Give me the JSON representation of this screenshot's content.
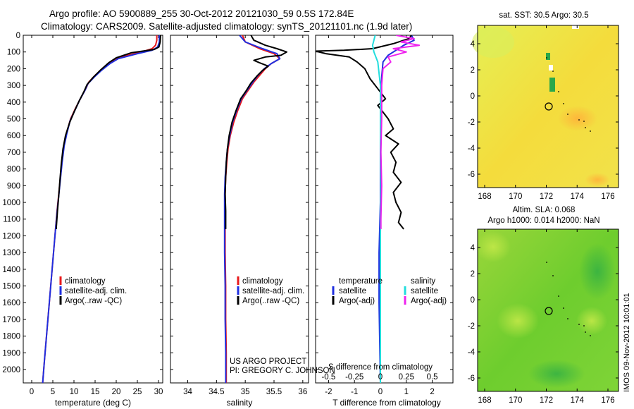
{
  "header": {
    "line1": "Argo profile: AO 5900889_255 30-Oct-2012 20121030_59 0.5S 172.84E",
    "line2": "Climatology: CARS2009. Satellite-adjusted climatology: synTS_20121101.nc (1.9d later)"
  },
  "side_stamp": "IMOS 09-Nov-2012 10:01:01",
  "colors": {
    "climatology": "#e8191b",
    "satellite": "#1f2fe0",
    "argo": "#000000",
    "argo_adj_s": "#ee22ee",
    "sat_s": "#22dddd"
  },
  "chart_data": [
    {
      "id": "temperature",
      "type": "line",
      "xlabel": "temperature (deg C)",
      "ylabel": "",
      "xlim": [
        -2,
        31
      ],
      "ylim": [
        2080,
        0
      ],
      "xticks": [
        0,
        5,
        10,
        15,
        20,
        25,
        30
      ],
      "yticks": [
        0,
        100,
        200,
        300,
        400,
        500,
        600,
        700,
        800,
        900,
        1000,
        1100,
        1200,
        1300,
        1400,
        1500,
        1600,
        1700,
        1800,
        1900,
        2000
      ],
      "legend": [
        "climatology",
        "satellite-adj. clim.",
        "Argo(..raw -QC)"
      ],
      "series": [
        {
          "name": "climatology",
          "color": "#e8191b",
          "points": [
            [
              29.6,
              0
            ],
            [
              29.6,
              30
            ],
            [
              29.3,
              60
            ],
            [
              28.5,
              80
            ],
            [
              26,
              100
            ],
            [
              21,
              130
            ],
            [
              19,
              160
            ],
            [
              16.8,
              200
            ],
            [
              15,
              240
            ],
            [
              13.5,
              280
            ],
            [
              12.8,
              320
            ],
            [
              11.5,
              380
            ],
            [
              10.3,
              440
            ],
            [
              9.2,
              500
            ],
            [
              8.3,
              580
            ],
            [
              7.7,
              650
            ],
            [
              7.2,
              750
            ],
            [
              6.8,
              850
            ],
            [
              6.4,
              950
            ],
            [
              6,
              1050
            ],
            [
              5.5,
              1200
            ],
            [
              5,
              1350
            ],
            [
              4.5,
              1500
            ],
            [
              4,
              1650
            ],
            [
              3.5,
              1800
            ],
            [
              3,
              1950
            ],
            [
              2.6,
              2080
            ]
          ]
        },
        {
          "name": "satellite-adj. clim.",
          "color": "#1f2fe0",
          "points": [
            [
              30.2,
              0
            ],
            [
              30.2,
              40
            ],
            [
              29.8,
              70
            ],
            [
              28.5,
              90
            ],
            [
              25,
              110
            ],
            [
              20.5,
              140
            ],
            [
              18.5,
              170
            ],
            [
              16.5,
              210
            ],
            [
              14.8,
              250
            ],
            [
              13.3,
              290
            ],
            [
              12.6,
              330
            ],
            [
              11.3,
              390
            ],
            [
              10.2,
              450
            ],
            [
              9.1,
              510
            ],
            [
              8.3,
              590
            ],
            [
              7.7,
              660
            ],
            [
              7.2,
              760
            ],
            [
              6.8,
              860
            ],
            [
              6.4,
              960
            ],
            [
              6,
              1060
            ],
            [
              5.5,
              1200
            ],
            [
              5,
              1350
            ],
            [
              4.5,
              1500
            ],
            [
              4,
              1650
            ],
            [
              3.5,
              1800
            ],
            [
              3,
              1950
            ],
            [
              2.6,
              2080
            ]
          ]
        },
        {
          "name": "Argo(..raw -QC)",
          "color": "#000000",
          "points": [
            [
              30.5,
              0
            ],
            [
              30.4,
              40
            ],
            [
              30.1,
              70
            ],
            [
              29,
              85
            ],
            [
              23.5,
              105
            ],
            [
              20,
              135
            ],
            [
              18.2,
              165
            ],
            [
              16.2,
              210
            ],
            [
              14.6,
              250
            ],
            [
              13.1,
              295
            ],
            [
              12.4,
              335
            ],
            [
              11.2,
              395
            ],
            [
              10.1,
              455
            ],
            [
              9.0,
              520
            ],
            [
              8.0,
              600
            ],
            [
              7.4,
              680
            ],
            [
              7.0,
              770
            ],
            [
              6.7,
              860
            ],
            [
              6.4,
              960
            ],
            [
              6.1,
              1050
            ],
            [
              5.8,
              1160
            ]
          ]
        }
      ]
    },
    {
      "id": "salinity",
      "type": "line",
      "xlabel": "salinity",
      "ylabel": "",
      "xlim": [
        33.7,
        36.1
      ],
      "ylim": [
        2080,
        0
      ],
      "xticks": [
        34,
        34.5,
        35,
        35.5,
        36
      ],
      "legend": [
        "climatology",
        "satellite-adj. clim.",
        "Argo(..raw -QC)"
      ],
      "annotation": [
        "US ARGO PROJECT",
        "PI: GREGORY C. JOHNSON"
      ],
      "series": [
        {
          "name": "climatology",
          "color": "#e8191b",
          "points": [
            [
              34.95,
              0
            ],
            [
              35.0,
              40
            ],
            [
              35.25,
              80
            ],
            [
              35.5,
              110
            ],
            [
              35.6,
              140
            ],
            [
              35.45,
              170
            ],
            [
              35.35,
              200
            ],
            [
              35.25,
              240
            ],
            [
              35.15,
              280
            ],
            [
              35.05,
              330
            ],
            [
              34.95,
              380
            ],
            [
              34.87,
              450
            ],
            [
              34.8,
              520
            ],
            [
              34.74,
              600
            ],
            [
              34.7,
              680
            ],
            [
              34.68,
              760
            ],
            [
              34.66,
              850
            ],
            [
              34.65,
              950
            ],
            [
              34.65,
              1100
            ],
            [
              34.65,
              1300
            ],
            [
              34.66,
              1500
            ],
            [
              34.66,
              1700
            ],
            [
              34.67,
              1900
            ],
            [
              34.67,
              2080
            ]
          ]
        },
        {
          "name": "satellite-adj. clim.",
          "color": "#1f2fe0",
          "points": [
            [
              34.9,
              0
            ],
            [
              35.0,
              40
            ],
            [
              35.3,
              80
            ],
            [
              35.55,
              110
            ],
            [
              35.6,
              140
            ],
            [
              35.45,
              170
            ],
            [
              35.33,
              200
            ],
            [
              35.22,
              240
            ],
            [
              35.13,
              280
            ],
            [
              35.03,
              330
            ],
            [
              34.93,
              380
            ],
            [
              34.85,
              450
            ],
            [
              34.78,
              520
            ],
            [
              34.73,
              600
            ],
            [
              34.69,
              680
            ],
            [
              34.67,
              760
            ],
            [
              34.65,
              850
            ],
            [
              34.64,
              950
            ],
            [
              34.64,
              1100
            ],
            [
              34.64,
              1300
            ],
            [
              34.65,
              1500
            ],
            [
              34.65,
              1700
            ],
            [
              34.66,
              1900
            ],
            [
              34.66,
              2080
            ]
          ]
        },
        {
          "name": "Argo(..raw -QC)",
          "color": "#000000",
          "points": [
            [
              35.1,
              0
            ],
            [
              35.15,
              30
            ],
            [
              35.35,
              60
            ],
            [
              35.55,
              80
            ],
            [
              35.72,
              100
            ],
            [
              35.62,
              120
            ],
            [
              35.35,
              130
            ],
            [
              35.15,
              150
            ],
            [
              35.25,
              165
            ],
            [
              35.4,
              185
            ],
            [
              35.3,
              210
            ],
            [
              35.2,
              245
            ],
            [
              35.1,
              285
            ],
            [
              35.02,
              330
            ],
            [
              34.92,
              380
            ],
            [
              34.84,
              450
            ],
            [
              34.77,
              520
            ],
            [
              34.72,
              600
            ],
            [
              34.69,
              680
            ],
            [
              34.67,
              760
            ],
            [
              34.66,
              850
            ],
            [
              34.65,
              950
            ],
            [
              34.66,
              1050
            ],
            [
              34.66,
              1160
            ]
          ]
        }
      ]
    },
    {
      "id": "difference",
      "type": "line",
      "xlabel": "T difference from climatology",
      "xlabel_top": "S difference from climatology",
      "xlim": [
        -2.5,
        2.8
      ],
      "ylim": [
        2080,
        0
      ],
      "xticks": [
        -2,
        -1,
        0,
        1,
        2
      ],
      "xticks_s": [
        "-0.5",
        "-0.25",
        "0",
        "0.25",
        "0.5"
      ],
      "legend_left_title": "temperature",
      "legend_right_title": "salinity",
      "legend_left": [
        "satellite",
        "Argo(-adj)"
      ],
      "legend_right": [
        "satellite",
        "Argo(-adj)"
      ],
      "series": [
        {
          "name": "T satellite",
          "color": "#1f2fe0",
          "points": [
            [
              1.2,
              0
            ],
            [
              1.3,
              30
            ],
            [
              0.9,
              60
            ],
            [
              0.6,
              90
            ],
            [
              0.3,
              120
            ],
            [
              0.1,
              160
            ],
            [
              0.05,
              250
            ],
            [
              0,
              400
            ],
            [
              0,
              700
            ],
            [
              0,
              1000
            ],
            [
              -0.05,
              1300
            ],
            [
              -0.05,
              1600
            ],
            [
              0,
              2080
            ]
          ]
        },
        {
          "name": "T Argo(-adj)",
          "color": "#000000",
          "points": [
            [
              1.2,
              0
            ],
            [
              1.1,
              20
            ],
            [
              0.5,
              50
            ],
            [
              -0.3,
              80
            ],
            [
              -1.4,
              90
            ],
            [
              -2.5,
              95
            ],
            [
              -2.1,
              110
            ],
            [
              -1.2,
              130
            ],
            [
              -0.9,
              160
            ],
            [
              -0.6,
              200
            ],
            [
              -0.4,
              260
            ],
            [
              -0.1,
              320
            ],
            [
              0.2,
              380
            ],
            [
              -0.1,
              420
            ],
            [
              0.1,
              460
            ],
            [
              0.3,
              500
            ],
            [
              0.5,
              560
            ],
            [
              0.2,
              600
            ],
            [
              0.7,
              650
            ],
            [
              0.4,
              700
            ],
            [
              0.6,
              760
            ],
            [
              0.5,
              820
            ],
            [
              0.8,
              880
            ],
            [
              0.5,
              940
            ],
            [
              0.6,
              1000
            ],
            [
              0.8,
              1060
            ],
            [
              0.7,
              1120
            ],
            [
              0.9,
              1160
            ]
          ]
        },
        {
          "name": "S satellite",
          "color": "#22dddd",
          "points": [
            [
              -0.2,
              0
            ],
            [
              -0.3,
              60
            ],
            [
              -0.25,
              100
            ],
            [
              -0.1,
              160
            ],
            [
              0,
              300
            ],
            [
              0,
              600
            ],
            [
              0.02,
              900
            ],
            [
              0,
              1200
            ],
            [
              0,
              1500
            ],
            [
              0,
              1800
            ],
            [
              0,
              2080
            ]
          ]
        },
        {
          "name": "S Argo(-adj)",
          "color": "#ee22ee",
          "points": [
            [
              0.6,
              0
            ],
            [
              1.3,
              20
            ],
            [
              0.8,
              40
            ],
            [
              1.5,
              60
            ],
            [
              0.5,
              80
            ],
            [
              1.0,
              100
            ],
            [
              0.3,
              130
            ],
            [
              0.4,
              160
            ],
            [
              0.1,
              200
            ],
            [
              0.05,
              300
            ],
            [
              0.05,
              500
            ],
            [
              0.02,
              700
            ],
            [
              0.05,
              900
            ],
            [
              0.02,
              1100
            ],
            [
              0.02,
              1160
            ]
          ]
        }
      ]
    }
  ],
  "maps": [
    {
      "id": "sst-map",
      "title": "sat. SST: 30.5 Argo: 30.5",
      "xticks": [
        "168",
        "170",
        "172",
        "174",
        "176"
      ],
      "yticks": [
        "4",
        "2",
        "0",
        "-2",
        "-4",
        "-6"
      ]
    },
    {
      "id": "sla-map",
      "title_line1": "Altim. SLA: 0.068",
      "title_line2": "Argo h1000: 0.014 h2000: NaN",
      "xticks": [
        "168",
        "170",
        "172",
        "174",
        "176"
      ],
      "yticks": [
        "4",
        "2",
        "0",
        "-2",
        "-4",
        "-6"
      ]
    }
  ]
}
